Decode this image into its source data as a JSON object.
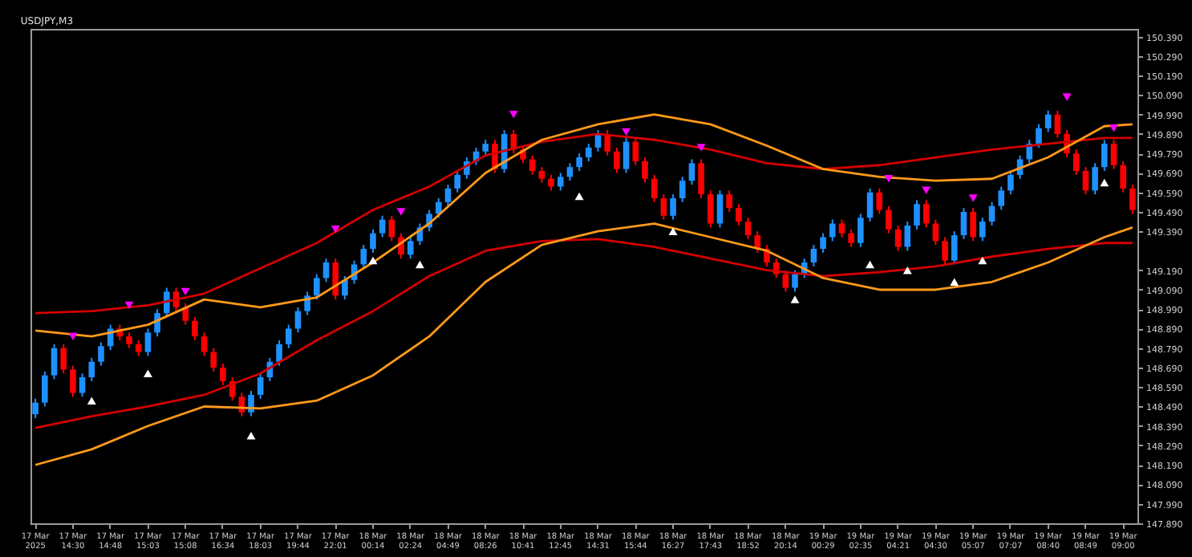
{
  "chart_data": {
    "type": "candlestick",
    "title": "USDJPY,M3",
    "categories": [
      "17 Mar 2025",
      null,
      null,
      null,
      "17 Mar 14:30",
      null,
      null,
      null,
      "17 Mar 14:48",
      null,
      null,
      null,
      "17 Mar 15:03",
      null,
      null,
      null,
      "17 Mar 15:08",
      null,
      null,
      null,
      "17 Mar 16:34",
      null,
      null,
      null,
      "17 Mar 18:03",
      null,
      null,
      null,
      "17 Mar 19:44",
      null,
      null,
      null,
      "17 Mar 22:01",
      null,
      null,
      null,
      "18 Mar 00:14",
      null,
      null,
      null,
      "18 Mar 02:24",
      null,
      null,
      null,
      "18 Mar 04:49",
      null,
      null,
      null,
      "18 Mar 08:26",
      null,
      null,
      null,
      "18 Mar 10:41",
      null,
      null,
      null,
      "18 Mar 12:45",
      null,
      null,
      null,
      "18 Mar 14:31",
      null,
      null,
      null,
      "18 Mar 15:44",
      null,
      null,
      null,
      "18 Mar 16:27",
      null,
      null,
      null,
      "18 Mar 17:43",
      null,
      null,
      null,
      "18 Mar 18:52",
      null,
      null,
      null,
      "18 Mar 20:14",
      null,
      null,
      null,
      "19 Mar 00:29",
      null,
      null,
      null,
      "19 Mar 02:35",
      null,
      null,
      null,
      "19 Mar 04:21",
      null,
      null,
      null,
      "19 Mar 04:30",
      null,
      null,
      null,
      "19 Mar 05:07",
      null,
      null,
      null,
      "19 Mar 07:07",
      null,
      null,
      null,
      "19 Mar 08:40",
      null,
      null,
      null,
      "19 Mar 08:49",
      null,
      null,
      null,
      "19 Mar 09:00",
      null
    ],
    "colors": [
      "#1e90ff",
      "#1e90ff",
      "#1e90ff",
      "#ff0000",
      "#ff0000",
      "#1e90ff",
      "#1e90ff",
      "#1e90ff",
      "#1e90ff",
      "#ff0000",
      "#ff0000",
      "#ff0000",
      "#1e90ff",
      "#1e90ff",
      "#1e90ff",
      "#ff0000",
      "#ff0000",
      "#ff0000",
      "#ff0000",
      "#ff0000",
      "#ff0000",
      "#ff0000",
      "#ff0000",
      "#1e90ff",
      "#1e90ff",
      "#1e90ff",
      "#1e90ff",
      "#1e90ff",
      "#1e90ff",
      "#1e90ff",
      "#1e90ff",
      "#1e90ff",
      "#ff0000",
      "#1e90ff",
      "#1e90ff",
      "#1e90ff",
      "#1e90ff",
      "#1e90ff",
      "#ff0000",
      "#ff0000",
      "#1e90ff",
      "#1e90ff",
      "#1e90ff",
      "#1e90ff",
      "#1e90ff",
      "#1e90ff",
      "#1e90ff",
      "#1e90ff",
      "#1e90ff",
      "#ff0000",
      "#1e90ff",
      "#ff0000",
      "#ff0000",
      "#ff0000",
      "#ff0000",
      "#ff0000",
      "#1e90ff",
      "#1e90ff",
      "#1e90ff",
      "#1e90ff",
      "#1e90ff",
      "#ff0000",
      "#ff0000",
      "#1e90ff",
      "#ff0000",
      "#ff0000",
      "#ff0000",
      "#ff0000",
      "#1e90ff",
      "#1e90ff",
      "#1e90ff",
      "#ff0000",
      "#ff0000",
      "#1e90ff",
      "#ff0000",
      "#ff0000",
      "#ff0000",
      "#ff0000",
      "#ff0000",
      "#ff0000",
      "#ff0000",
      "#1e90ff",
      "#1e90ff",
      "#1e90ff",
      "#1e90ff",
      "#1e90ff",
      "#ff0000",
      "#ff0000",
      "#1e90ff",
      "#1e90ff",
      "#ff0000",
      "#ff0000",
      "#ff0000",
      "#1e90ff",
      "#1e90ff",
      "#ff0000",
      "#ff0000",
      "#ff0000",
      "#1e90ff",
      "#1e90ff",
      "#ff0000",
      "#1e90ff",
      "#1e90ff",
      "#1e90ff",
      "#1e90ff",
      "#1e90ff",
      "#1e90ff",
      "#1e90ff",
      "#1e90ff",
      "#ff0000",
      "#ff0000",
      "#ff0000",
      "#ff0000",
      "#1e90ff",
      "#1e90ff",
      "#ff0000",
      "#ff0000",
      "#ff0000"
    ],
    "ohlc": [
      [
        148.45,
        148.53,
        148.43,
        148.51
      ],
      [
        148.51,
        148.67,
        148.49,
        148.65
      ],
      [
        148.65,
        148.81,
        148.63,
        148.79
      ],
      [
        148.79,
        148.81,
        148.66,
        148.68
      ],
      [
        148.68,
        148.7,
        148.54,
        148.56
      ],
      [
        148.56,
        148.66,
        148.54,
        148.64
      ],
      [
        148.64,
        148.74,
        148.62,
        148.72
      ],
      [
        148.72,
        148.82,
        148.7,
        148.8
      ],
      [
        148.8,
        148.91,
        148.78,
        148.89
      ],
      [
        148.89,
        148.91,
        148.83,
        148.85
      ],
      [
        148.85,
        148.87,
        148.79,
        148.81
      ],
      [
        148.81,
        148.83,
        148.75,
        148.77
      ],
      [
        148.77,
        148.89,
        148.75,
        148.87
      ],
      [
        148.87,
        148.99,
        148.85,
        148.97
      ],
      [
        148.97,
        149.1,
        148.95,
        149.08
      ],
      [
        149.08,
        149.1,
        148.98,
        149.0
      ],
      [
        149.0,
        149.02,
        148.91,
        148.93
      ],
      [
        148.93,
        148.95,
        148.83,
        148.85
      ],
      [
        148.85,
        148.87,
        148.75,
        148.77
      ],
      [
        148.77,
        148.79,
        148.67,
        148.69
      ],
      [
        148.69,
        148.71,
        148.6,
        148.62
      ],
      [
        148.62,
        148.64,
        148.52,
        148.54
      ],
      [
        148.54,
        148.56,
        148.44,
        148.46
      ],
      [
        148.46,
        148.57,
        148.44,
        148.55
      ],
      [
        148.55,
        148.66,
        148.53,
        148.64
      ],
      [
        148.64,
        148.74,
        148.62,
        148.72
      ],
      [
        148.72,
        148.83,
        148.7,
        148.81
      ],
      [
        148.81,
        148.91,
        148.79,
        148.89
      ],
      [
        148.89,
        149.0,
        148.87,
        148.98
      ],
      [
        148.98,
        149.08,
        148.96,
        149.06
      ],
      [
        149.06,
        149.17,
        149.04,
        149.15
      ],
      [
        149.15,
        149.25,
        149.13,
        149.23
      ],
      [
        149.23,
        149.25,
        149.04,
        149.06
      ],
      [
        149.06,
        149.16,
        149.04,
        149.14
      ],
      [
        149.14,
        149.24,
        149.12,
        149.22
      ],
      [
        149.22,
        149.32,
        149.2,
        149.3
      ],
      [
        149.3,
        149.4,
        149.28,
        149.38
      ],
      [
        149.38,
        149.47,
        149.36,
        149.45
      ],
      [
        149.45,
        149.47,
        149.34,
        149.36
      ],
      [
        149.36,
        149.38,
        149.25,
        149.27
      ],
      [
        149.27,
        149.36,
        149.25,
        149.34
      ],
      [
        149.34,
        149.43,
        149.32,
        149.41
      ],
      [
        149.41,
        149.5,
        149.39,
        149.48
      ],
      [
        149.48,
        149.56,
        149.46,
        149.54
      ],
      [
        149.54,
        149.63,
        149.52,
        149.61
      ],
      [
        149.61,
        149.7,
        149.59,
        149.68
      ],
      [
        149.68,
        149.77,
        149.66,
        149.75
      ],
      [
        149.75,
        149.82,
        149.73,
        149.8
      ],
      [
        149.8,
        149.86,
        149.78,
        149.84
      ],
      [
        149.84,
        149.86,
        149.69,
        149.71
      ],
      [
        149.71,
        149.91,
        149.69,
        149.89
      ],
      [
        149.89,
        149.91,
        149.79,
        149.81
      ],
      [
        149.81,
        149.83,
        149.74,
        149.76
      ],
      [
        149.76,
        149.78,
        149.68,
        149.7
      ],
      [
        149.7,
        149.72,
        149.64,
        149.66
      ],
      [
        149.66,
        149.68,
        149.6,
        149.62
      ],
      [
        149.62,
        149.69,
        149.6,
        149.67
      ],
      [
        149.67,
        149.74,
        149.65,
        149.72
      ],
      [
        149.72,
        149.79,
        149.7,
        149.77
      ],
      [
        149.77,
        149.84,
        149.75,
        149.82
      ],
      [
        149.82,
        149.91,
        149.8,
        149.89
      ],
      [
        149.89,
        149.91,
        149.78,
        149.8
      ],
      [
        149.8,
        149.82,
        149.69,
        149.71
      ],
      [
        149.71,
        149.87,
        149.69,
        149.85
      ],
      [
        149.85,
        149.87,
        149.73,
        149.75
      ],
      [
        149.75,
        149.77,
        149.64,
        149.66
      ],
      [
        149.66,
        149.68,
        149.54,
        149.56
      ],
      [
        149.56,
        149.58,
        149.45,
        149.47
      ],
      [
        149.47,
        149.58,
        149.45,
        149.56
      ],
      [
        149.56,
        149.67,
        149.54,
        149.65
      ],
      [
        149.65,
        149.76,
        149.63,
        149.74
      ],
      [
        149.74,
        149.76,
        149.56,
        149.58
      ],
      [
        149.58,
        149.6,
        149.41,
        149.43
      ],
      [
        149.43,
        149.6,
        149.41,
        149.58
      ],
      [
        149.58,
        149.6,
        149.49,
        149.51
      ],
      [
        149.51,
        149.53,
        149.42,
        149.44
      ],
      [
        149.44,
        149.46,
        149.35,
        149.37
      ],
      [
        149.37,
        149.39,
        149.28,
        149.3
      ],
      [
        149.3,
        149.32,
        149.21,
        149.23
      ],
      [
        149.23,
        149.25,
        149.15,
        149.17
      ],
      [
        149.17,
        149.19,
        149.08,
        149.1
      ],
      [
        149.1,
        149.19,
        149.08,
        149.17
      ],
      [
        149.17,
        149.25,
        149.15,
        149.23
      ],
      [
        149.23,
        149.32,
        149.21,
        149.3
      ],
      [
        149.3,
        149.38,
        149.28,
        149.36
      ],
      [
        149.36,
        149.45,
        149.34,
        149.43
      ],
      [
        149.43,
        149.45,
        149.36,
        149.38
      ],
      [
        149.38,
        149.4,
        149.31,
        149.33
      ],
      [
        149.33,
        149.48,
        149.31,
        149.46
      ],
      [
        149.46,
        149.61,
        149.44,
        149.59
      ],
      [
        149.59,
        149.61,
        149.48,
        149.5
      ],
      [
        149.5,
        149.52,
        149.38,
        149.4
      ],
      [
        149.4,
        149.42,
        149.29,
        149.31
      ],
      [
        149.31,
        149.44,
        149.29,
        149.42
      ],
      [
        149.42,
        149.55,
        149.4,
        149.53
      ],
      [
        149.53,
        149.55,
        149.41,
        149.43
      ],
      [
        149.43,
        149.45,
        149.32,
        149.34
      ],
      [
        149.34,
        149.36,
        149.22,
        149.24
      ],
      [
        149.24,
        149.39,
        149.22,
        149.37
      ],
      [
        149.37,
        149.51,
        149.35,
        149.49
      ],
      [
        149.49,
        149.51,
        149.34,
        149.36
      ],
      [
        149.36,
        149.46,
        149.34,
        149.44
      ],
      [
        149.44,
        149.54,
        149.42,
        149.52
      ],
      [
        149.52,
        149.62,
        149.5,
        149.6
      ],
      [
        149.6,
        149.7,
        149.58,
        149.68
      ],
      [
        149.68,
        149.78,
        149.66,
        149.76
      ],
      [
        149.76,
        149.86,
        149.74,
        149.84
      ],
      [
        149.84,
        149.94,
        149.82,
        149.92
      ],
      [
        149.92,
        150.01,
        149.9,
        149.99
      ],
      [
        149.99,
        150.01,
        149.87,
        149.89
      ],
      [
        149.89,
        149.91,
        149.77,
        149.79
      ],
      [
        149.79,
        149.81,
        149.68,
        149.7
      ],
      [
        149.7,
        149.72,
        149.58,
        149.6
      ],
      [
        149.6,
        149.74,
        149.58,
        149.72
      ],
      [
        149.72,
        149.86,
        149.7,
        149.84
      ],
      [
        149.84,
        149.86,
        149.71,
        149.73
      ],
      [
        149.73,
        149.75,
        149.59,
        149.61
      ],
      [
        149.61,
        149.63,
        149.48,
        149.5
      ]
    ],
    "series": [
      {
        "type": "line",
        "color": "#d40000",
        "values": [
          148.97,
          null,
          null,
          null,
          null,
          null,
          148.98,
          null,
          null,
          null,
          null,
          null,
          149.01,
          null,
          null,
          null,
          null,
          null,
          149.07,
          null,
          null,
          null,
          null,
          null,
          149.2,
          null,
          null,
          null,
          null,
          null,
          149.33,
          null,
          null,
          null,
          null,
          null,
          149.5,
          null,
          null,
          null,
          null,
          null,
          149.62,
          null,
          null,
          null,
          null,
          null,
          149.78,
          null,
          null,
          null,
          null,
          null,
          149.85,
          null,
          null,
          null,
          null,
          null,
          149.89,
          null,
          null,
          null,
          null,
          null,
          149.86,
          null,
          null,
          null,
          null,
          null,
          149.81,
          null,
          null,
          null,
          null,
          null,
          149.74,
          null,
          null,
          null,
          null,
          null,
          149.71,
          null,
          null,
          null,
          null,
          null,
          149.73,
          null,
          null,
          null,
          null,
          null,
          149.77,
          null,
          null,
          null,
          null,
          null,
          149.81,
          null,
          null,
          null,
          null,
          null,
          149.84,
          null,
          null,
          null,
          null,
          null,
          149.87,
          null,
          null,
          149.87
        ]
      },
      {
        "type": "line",
        "color": "#d40000",
        "values": [
          148.38,
          null,
          null,
          null,
          null,
          null,
          148.44,
          null,
          null,
          null,
          null,
          null,
          148.49,
          null,
          null,
          null,
          null,
          null,
          148.55,
          null,
          null,
          null,
          null,
          null,
          148.66,
          null,
          null,
          null,
          null,
          null,
          148.83,
          null,
          null,
          null,
          null,
          null,
          148.98,
          null,
          null,
          null,
          null,
          null,
          149.16,
          null,
          null,
          null,
          null,
          null,
          149.29,
          null,
          null,
          null,
          null,
          null,
          149.34,
          null,
          null,
          null,
          null,
          null,
          149.35,
          null,
          null,
          null,
          null,
          null,
          149.31,
          null,
          null,
          null,
          null,
          null,
          149.25,
          null,
          null,
          null,
          null,
          null,
          149.19,
          null,
          null,
          null,
          null,
          null,
          149.16,
          null,
          null,
          null,
          null,
          null,
          149.18,
          null,
          null,
          null,
          null,
          null,
          149.21,
          null,
          null,
          null,
          null,
          null,
          149.26,
          null,
          null,
          null,
          null,
          null,
          149.3,
          null,
          null,
          null,
          null,
          null,
          149.33,
          null,
          null,
          149.33
        ]
      },
      {
        "type": "line",
        "color": "#ff9a1a",
        "values": [
          148.88,
          null,
          null,
          null,
          null,
          null,
          148.85,
          null,
          null,
          null,
          null,
          null,
          148.91,
          null,
          null,
          null,
          null,
          null,
          149.04,
          null,
          null,
          null,
          null,
          null,
          149.0,
          null,
          null,
          null,
          null,
          null,
          149.05,
          null,
          null,
          null,
          null,
          null,
          149.23,
          null,
          null,
          null,
          null,
          null,
          149.43,
          null,
          null,
          null,
          null,
          null,
          149.69,
          null,
          null,
          null,
          null,
          null,
          149.86,
          null,
          null,
          null,
          null,
          null,
          149.94,
          null,
          null,
          null,
          null,
          null,
          149.99,
          null,
          null,
          null,
          null,
          null,
          149.94,
          null,
          null,
          null,
          null,
          null,
          149.83,
          null,
          null,
          null,
          null,
          null,
          149.71,
          null,
          null,
          null,
          null,
          null,
          149.67,
          null,
          null,
          null,
          null,
          null,
          149.65,
          null,
          null,
          null,
          null,
          null,
          149.66,
          null,
          null,
          null,
          null,
          null,
          149.77,
          null,
          null,
          null,
          null,
          null,
          149.93,
          null,
          null,
          149.94
        ]
      },
      {
        "type": "line",
        "color": "#ff9a1a",
        "values": [
          148.19,
          null,
          null,
          null,
          null,
          null,
          148.27,
          null,
          null,
          null,
          null,
          null,
          148.39,
          null,
          null,
          null,
          null,
          null,
          148.49,
          null,
          null,
          null,
          null,
          null,
          148.48,
          null,
          null,
          null,
          null,
          null,
          148.52,
          null,
          null,
          null,
          null,
          null,
          148.65,
          null,
          null,
          null,
          null,
          null,
          148.85,
          null,
          null,
          null,
          null,
          null,
          149.13,
          null,
          null,
          null,
          null,
          null,
          149.32,
          null,
          null,
          null,
          null,
          null,
          149.39,
          null,
          null,
          null,
          null,
          null,
          149.43,
          null,
          null,
          null,
          null,
          null,
          149.36,
          null,
          null,
          null,
          null,
          null,
          149.29,
          null,
          null,
          null,
          null,
          null,
          149.15,
          null,
          null,
          null,
          null,
          null,
          149.09,
          null,
          null,
          null,
          null,
          null,
          149.09,
          null,
          null,
          null,
          null,
          null,
          149.13,
          null,
          null,
          null,
          null,
          null,
          149.23,
          null,
          null,
          null,
          null,
          null,
          149.36,
          null,
          null,
          149.41
        ]
      },
      {
        "type": "scatter",
        "color": "#ff00ff",
        "marker": "triangle",
        "values": [
          null,
          null,
          null,
          null,
          148.85,
          null,
          null,
          null,
          null,
          null,
          149.01,
          null,
          null,
          null,
          null,
          null,
          149.08,
          null,
          null,
          null,
          null,
          null,
          null,
          null,
          null,
          null,
          null,
          null,
          null,
          null,
          null,
          null,
          149.4,
          null,
          null,
          null,
          null,
          null,
          null,
          149.49,
          null,
          null,
          null,
          null,
          null,
          null,
          null,
          null,
          null,
          null,
          null,
          149.99,
          null,
          null,
          null,
          null,
          null,
          null,
          null,
          null,
          null,
          null,
          null,
          149.9,
          null,
          null,
          null,
          null,
          null,
          null,
          null,
          149.82,
          null,
          null,
          null,
          null,
          null,
          null,
          null,
          null,
          null,
          null,
          null,
          null,
          null,
          null,
          null,
          null,
          null,
          null,
          null,
          149.66,
          null,
          null,
          null,
          149.6,
          null,
          null,
          null,
          null,
          149.56,
          null,
          null,
          null,
          null,
          null,
          null,
          null,
          null,
          null,
          150.08,
          null,
          null,
          null,
          null,
          149.92,
          null,
          null
        ]
      },
      {
        "type": "scatter",
        "color": "#ffffff",
        "marker": "triangle",
        "values": [
          null,
          null,
          null,
          null,
          null,
          null,
          148.52,
          null,
          null,
          null,
          null,
          null,
          148.66,
          null,
          null,
          null,
          null,
          null,
          null,
          null,
          null,
          null,
          null,
          148.34,
          null,
          null,
          null,
          null,
          null,
          null,
          null,
          null,
          null,
          null,
          null,
          null,
          149.24,
          null,
          null,
          null,
          null,
          149.22,
          null,
          null,
          null,
          null,
          null,
          null,
          null,
          null,
          null,
          null,
          null,
          null,
          null,
          null,
          null,
          null,
          149.57,
          null,
          null,
          null,
          null,
          null,
          null,
          null,
          null,
          null,
          149.39,
          null,
          null,
          null,
          null,
          null,
          null,
          null,
          null,
          null,
          null,
          null,
          null,
          149.04,
          null,
          null,
          null,
          null,
          null,
          null,
          null,
          149.22,
          null,
          null,
          null,
          149.19,
          null,
          null,
          null,
          null,
          149.13,
          null,
          null,
          149.24,
          null,
          null,
          null,
          null,
          null,
          null,
          null,
          null,
          null,
          null,
          null,
          null,
          149.64,
          null,
          null,
          null
        ]
      }
    ],
    "ylim": [
      147.89,
      150.43
    ],
    "yticks": [
      {
        "value": 147.89,
        "label": "147.890"
      },
      {
        "value": 147.99,
        "label": "147.990"
      },
      {
        "value": 148.09,
        "label": "148.090"
      },
      {
        "value": 148.19,
        "label": "148.190"
      },
      {
        "value": 148.29,
        "label": "148.290"
      },
      {
        "value": 148.39,
        "label": "148.390"
      },
      {
        "value": 148.49,
        "label": "148.490"
      },
      {
        "value": 148.59,
        "label": "148.590"
      },
      {
        "value": 148.69,
        "label": "148.690"
      },
      {
        "value": 148.79,
        "label": "148.790"
      },
      {
        "value": 148.89,
        "label": "148.890"
      },
      {
        "value": 148.99,
        "label": "148.990"
      },
      {
        "value": 149.09,
        "label": "149.090"
      },
      {
        "value": 149.19,
        "label": "149.190"
      },
      {
        "value": 149.39,
        "label": "149.390"
      },
      {
        "value": 149.49,
        "label": "149.490"
      },
      {
        "value": 149.59,
        "label": "149.590"
      },
      {
        "value": 149.69,
        "label": "149.690"
      },
      {
        "value": 149.79,
        "label": "149.790"
      },
      {
        "value": 149.89,
        "label": "149.890"
      },
      {
        "value": 149.99,
        "label": "149.990"
      },
      {
        "value": 150.09,
        "label": "150.090"
      },
      {
        "value": 150.19,
        "label": "150.190"
      },
      {
        "value": 150.29,
        "label": "150.290"
      },
      {
        "value": 150.39,
        "label": "150.390"
      }
    ]
  }
}
